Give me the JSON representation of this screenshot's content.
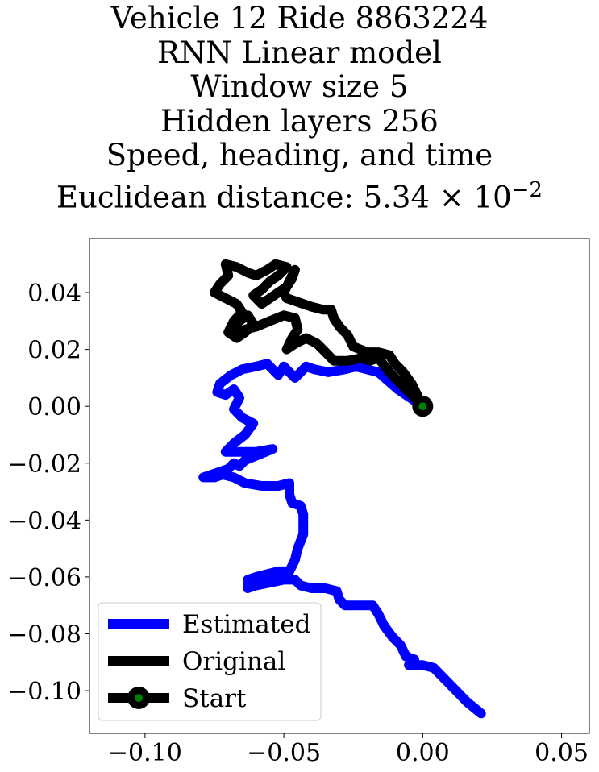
{
  "chart_data": {
    "type": "line",
    "title_lines": [
      "Vehicle 12 Ride 8863224",
      "RNN Linear model",
      "Window size 5",
      "Hidden layers 256",
      "Speed, heading, and time"
    ],
    "title_metric_prefix": "Euclidean distance: 5.34 × 10",
    "title_metric_exponent": "−2",
    "xlim": [
      -0.12,
      0.06
    ],
    "ylim": [
      -0.115,
      0.059
    ],
    "xticks": [
      -0.1,
      -0.05,
      0.0,
      0.05
    ],
    "xtick_labels": [
      "−0.10",
      "−0.05",
      "0.00",
      "0.05"
    ],
    "yticks": [
      0.04,
      0.02,
      0.0,
      -0.02,
      -0.04,
      -0.06,
      -0.08,
      -0.1
    ],
    "ytick_labels": [
      "0.04",
      "0.02",
      "0.00",
      "−0.02",
      "−0.04",
      "−0.06",
      "−0.08",
      "−0.10"
    ],
    "grid": false,
    "legend_position": "lower-left",
    "series": [
      {
        "name": "Estimated",
        "color": "#0000ff",
        "points": [
          [
            0.0,
            0.0
          ],
          [
            -0.009,
            0.006
          ],
          [
            -0.016,
            0.012
          ],
          [
            -0.024,
            0.014
          ],
          [
            -0.028,
            0.013
          ],
          [
            -0.034,
            0.012
          ],
          [
            -0.039,
            0.013
          ],
          [
            -0.042,
            0.014
          ],
          [
            -0.044,
            0.012
          ],
          [
            -0.046,
            0.01
          ],
          [
            -0.048,
            0.012
          ],
          [
            -0.05,
            0.014
          ],
          [
            -0.052,
            0.011
          ],
          [
            -0.054,
            0.013
          ],
          [
            -0.056,
            0.015
          ],
          [
            -0.06,
            0.014
          ],
          [
            -0.065,
            0.013
          ],
          [
            -0.069,
            0.011
          ],
          [
            -0.073,
            0.008
          ],
          [
            -0.074,
            0.005
          ],
          [
            -0.071,
            0.004
          ],
          [
            -0.068,
            0.006
          ],
          [
            -0.066,
            0.003
          ],
          [
            -0.068,
            -0.001
          ],
          [
            -0.065,
            -0.004
          ],
          [
            -0.061,
            -0.006
          ],
          [
            -0.064,
            -0.01
          ],
          [
            -0.068,
            -0.013
          ],
          [
            -0.071,
            -0.016
          ],
          [
            -0.066,
            -0.016
          ],
          [
            -0.06,
            -0.016
          ],
          [
            -0.054,
            -0.015
          ],
          [
            -0.059,
            -0.017
          ],
          [
            -0.064,
            -0.019
          ],
          [
            -0.066,
            -0.021
          ],
          [
            -0.068,
            -0.02
          ],
          [
            -0.07,
            -0.022
          ],
          [
            -0.073,
            -0.023
          ],
          [
            -0.076,
            -0.024
          ],
          [
            -0.079,
            -0.025
          ],
          [
            -0.075,
            -0.025
          ],
          [
            -0.072,
            -0.024
          ],
          [
            -0.068,
            -0.025
          ],
          [
            -0.064,
            -0.027
          ],
          [
            -0.058,
            -0.028
          ],
          [
            -0.052,
            -0.028
          ],
          [
            -0.048,
            -0.027
          ],
          [
            -0.048,
            -0.031
          ],
          [
            -0.047,
            -0.034
          ],
          [
            -0.044,
            -0.035
          ],
          [
            -0.043,
            -0.038
          ],
          [
            -0.043,
            -0.045
          ],
          [
            -0.045,
            -0.05
          ],
          [
            -0.046,
            -0.054
          ],
          [
            -0.048,
            -0.058
          ],
          [
            -0.052,
            -0.058
          ],
          [
            -0.056,
            -0.059
          ],
          [
            -0.06,
            -0.06
          ],
          [
            -0.063,
            -0.061
          ],
          [
            -0.063,
            -0.064
          ],
          [
            -0.06,
            -0.063
          ],
          [
            -0.055,
            -0.062
          ],
          [
            -0.05,
            -0.061
          ],
          [
            -0.046,
            -0.061
          ],
          [
            -0.044,
            -0.063
          ],
          [
            -0.04,
            -0.064
          ],
          [
            -0.035,
            -0.064
          ],
          [
            -0.031,
            -0.065
          ],
          [
            -0.03,
            -0.068
          ],
          [
            -0.028,
            -0.07
          ],
          [
            -0.023,
            -0.07
          ],
          [
            -0.018,
            -0.07
          ],
          [
            -0.016,
            -0.073
          ],
          [
            -0.014,
            -0.077
          ],
          [
            -0.011,
            -0.081
          ],
          [
            -0.008,
            -0.084
          ],
          [
            -0.006,
            -0.088
          ],
          [
            -0.003,
            -0.089
          ],
          [
            -0.005,
            -0.091
          ],
          [
            0.0,
            -0.091
          ],
          [
            0.004,
            -0.092
          ],
          [
            0.008,
            -0.096
          ],
          [
            0.012,
            -0.1
          ],
          [
            0.016,
            -0.104
          ],
          [
            0.021,
            -0.108
          ]
        ]
      },
      {
        "name": "Original",
        "color": "#000000",
        "points": [
          [
            0.0,
            0.0
          ],
          [
            -0.004,
            0.004
          ],
          [
            -0.008,
            0.008
          ],
          [
            -0.012,
            0.012
          ],
          [
            -0.016,
            0.017
          ],
          [
            -0.019,
            0.016
          ],
          [
            -0.022,
            0.017
          ],
          [
            -0.027,
            0.016
          ],
          [
            -0.032,
            0.016
          ],
          [
            -0.035,
            0.019
          ],
          [
            -0.038,
            0.022
          ],
          [
            -0.042,
            0.024
          ],
          [
            -0.046,
            0.022
          ],
          [
            -0.049,
            0.02
          ],
          [
            -0.047,
            0.024
          ],
          [
            -0.045,
            0.027
          ],
          [
            -0.046,
            0.031
          ],
          [
            -0.05,
            0.032
          ],
          [
            -0.055,
            0.03
          ],
          [
            -0.06,
            0.028
          ],
          [
            -0.064,
            0.027
          ],
          [
            -0.067,
            0.025
          ],
          [
            -0.069,
            0.027
          ],
          [
            -0.066,
            0.03
          ],
          [
            -0.063,
            0.032
          ],
          [
            -0.061,
            0.029
          ],
          [
            -0.064,
            0.026
          ],
          [
            -0.067,
            0.024
          ],
          [
            -0.07,
            0.026
          ],
          [
            -0.068,
            0.03
          ],
          [
            -0.065,
            0.033
          ],
          [
            -0.067,
            0.036
          ],
          [
            -0.071,
            0.038
          ],
          [
            -0.075,
            0.04
          ],
          [
            -0.073,
            0.043
          ],
          [
            -0.07,
            0.046
          ],
          [
            -0.071,
            0.05
          ],
          [
            -0.067,
            0.049
          ],
          [
            -0.063,
            0.047
          ],
          [
            -0.06,
            0.046
          ],
          [
            -0.056,
            0.048
          ],
          [
            -0.053,
            0.05
          ],
          [
            -0.049,
            0.049
          ],
          [
            -0.052,
            0.046
          ],
          [
            -0.055,
            0.044
          ],
          [
            -0.058,
            0.041
          ],
          [
            -0.061,
            0.039
          ],
          [
            -0.058,
            0.036
          ],
          [
            -0.055,
            0.038
          ],
          [
            -0.052,
            0.04
          ],
          [
            -0.049,
            0.042
          ],
          [
            -0.047,
            0.045
          ],
          [
            -0.046,
            0.048
          ],
          [
            -0.048,
            0.044
          ],
          [
            -0.05,
            0.04
          ],
          [
            -0.049,
            0.038
          ],
          [
            -0.046,
            0.037
          ],
          [
            -0.043,
            0.036
          ],
          [
            -0.04,
            0.035
          ],
          [
            -0.036,
            0.034
          ],
          [
            -0.033,
            0.034
          ],
          [
            -0.032,
            0.031
          ],
          [
            -0.03,
            0.028
          ],
          [
            -0.027,
            0.025
          ],
          [
            -0.025,
            0.021
          ],
          [
            -0.02,
            0.019
          ],
          [
            -0.016,
            0.019
          ],
          [
            -0.012,
            0.018
          ],
          [
            -0.01,
            0.015
          ],
          [
            -0.007,
            0.012
          ],
          [
            -0.004,
            0.008
          ],
          [
            -0.002,
            0.004
          ],
          [
            0.0,
            0.0
          ]
        ]
      }
    ],
    "start": {
      "name": "Start",
      "x": 0.0,
      "y": 0.0,
      "outer_color": "#000000",
      "inner_color": "#008000"
    },
    "legend": [
      {
        "label": "Estimated",
        "kind": "line",
        "color": "#0000ff"
      },
      {
        "label": "Original",
        "kind": "line",
        "color": "#000000"
      },
      {
        "label": "Start",
        "kind": "marker",
        "color": "#000000",
        "inner_color": "#008000"
      }
    ]
  }
}
